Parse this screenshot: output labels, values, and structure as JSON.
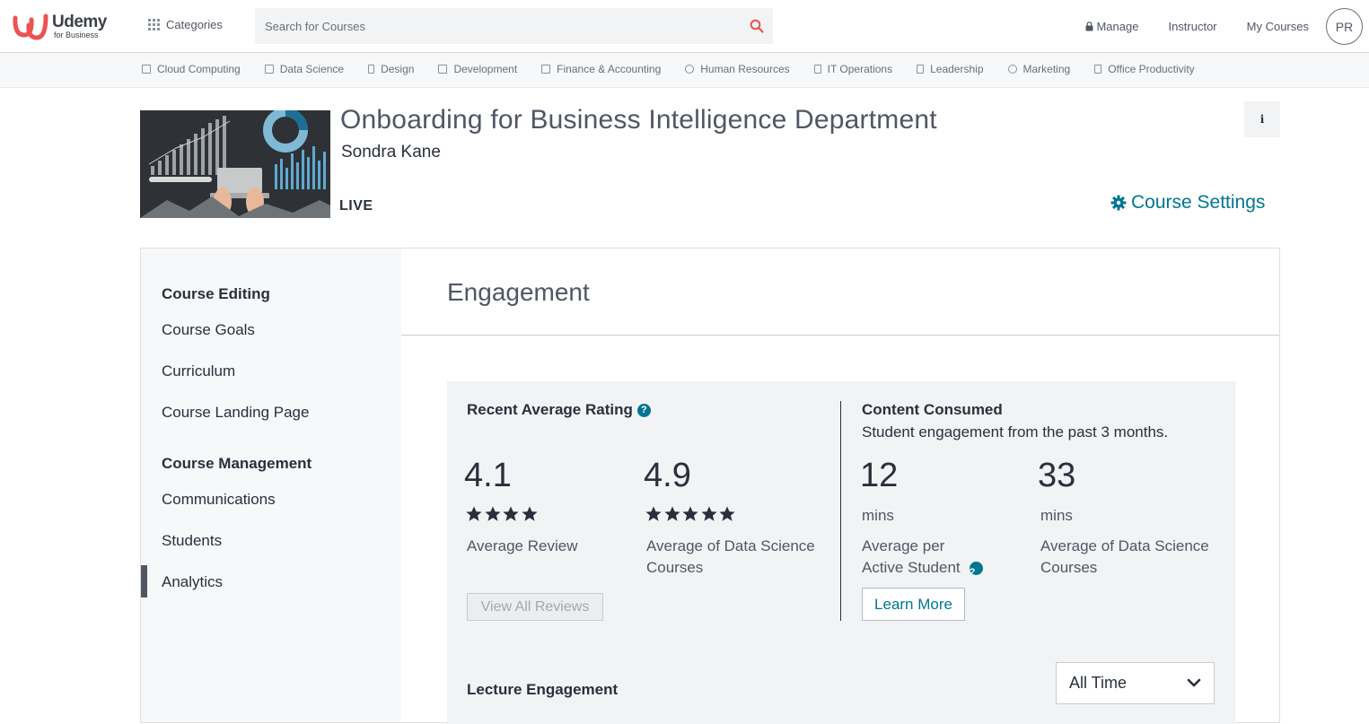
{
  "header": {
    "brand": "Udemy",
    "brand_sub": "for Business",
    "categories_label": "Categories",
    "search_placeholder": "Search for Courses",
    "nav": [
      {
        "label": "Manage"
      },
      {
        "label": "Instructor"
      },
      {
        "label": "My Courses"
      }
    ],
    "avatar_initials": "PR"
  },
  "subnav": [
    {
      "label": "Cloud Computing",
      "icon": "cloud-icon"
    },
    {
      "label": "Data Science",
      "icon": "data-icon"
    },
    {
      "label": "Design",
      "icon": "design-icon"
    },
    {
      "label": "Development",
      "icon": "code-icon"
    },
    {
      "label": "Finance & Accounting",
      "icon": "finance-icon"
    },
    {
      "label": "Human Resources",
      "icon": "people-icon"
    },
    {
      "label": "IT Operations",
      "icon": "server-icon"
    },
    {
      "label": "Leadership",
      "icon": "leadership-icon"
    },
    {
      "label": "Marketing",
      "icon": "marketing-icon"
    },
    {
      "label": "Office Productivity",
      "icon": "office-icon"
    }
  ],
  "course": {
    "title": "Onboarding for Business Intelligence Department",
    "author": "Sondra Kane",
    "status": "LIVE",
    "info_glyph": "i",
    "settings_label": "Course Settings"
  },
  "sidebar": {
    "sections": [
      {
        "title": "Course Editing",
        "items": [
          "Course Goals",
          "Curriculum",
          "Course Landing Page"
        ]
      },
      {
        "title": "Course Management",
        "items": [
          "Communications",
          "Students",
          "Analytics"
        ]
      }
    ],
    "active_item": "Analytics"
  },
  "main": {
    "title": "Engagement",
    "rating": {
      "heading": "Recent Average Rating",
      "course_value": "4.1",
      "course_stars": 4,
      "course_label": "Average Review",
      "benchmark_value": "4.9",
      "benchmark_stars": 5,
      "benchmark_label_1": "Average of Data Science",
      "benchmark_label_2": "Courses",
      "button": "View All Reviews"
    },
    "consumed": {
      "heading": "Content Consumed",
      "subheading": "Student engagement from the past 3 months.",
      "student_value": "12",
      "student_unit": "mins",
      "student_label_1": "Average per",
      "student_label_2": "Active Student",
      "benchmark_value": "33",
      "benchmark_unit": "mins",
      "benchmark_label_1": "Average of Data Science",
      "benchmark_label_2": "Courses",
      "button": "Learn More"
    },
    "lecture": {
      "heading": "Lecture Engagement",
      "range_selected": "All Time"
    }
  },
  "colors": {
    "accent": "#007791",
    "logo": "#ec5252",
    "search_icon": "#ec5252"
  }
}
